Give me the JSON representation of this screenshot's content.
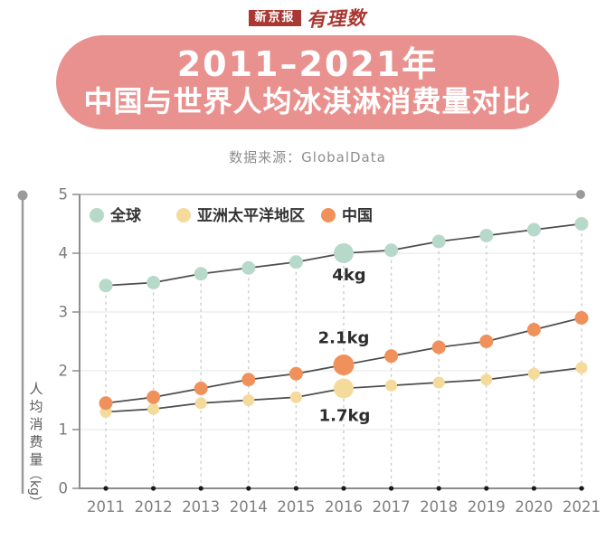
{
  "header": {
    "brand_primary": "新京报",
    "brand_secondary": "有理数",
    "title_line1": "2011–2021年",
    "title_line2": "中国与世界人均冰淇淋消费量对比",
    "source": "数据来源：GlobalData"
  },
  "colors": {
    "banner": "#e9918e",
    "brand_red": "#a93832",
    "line": "#4d4d4d",
    "axis": "#8c8c8c",
    "grid": "#e9e9e9",
    "dash": "#c9c9c9",
    "pin": "#9a9a9a",
    "tick_label": "#7a7a7a",
    "annotation": "#2d2d2d"
  },
  "chart_data": {
    "type": "line",
    "title": "2011-2021年中国与世界人均冰淇淋消费量对比",
    "x": [
      2011,
      2012,
      2013,
      2014,
      2015,
      2016,
      2017,
      2018,
      2019,
      2020,
      2021
    ],
    "series": [
      {
        "name": "全球",
        "color": "#b7d9c9",
        "values": [
          3.45,
          3.5,
          3.65,
          3.75,
          3.85,
          4.0,
          4.05,
          4.2,
          4.3,
          4.4,
          4.5
        ]
      },
      {
        "name": "亚洲太平洋地区",
        "color": "#f4da9b",
        "values": [
          1.3,
          1.35,
          1.45,
          1.5,
          1.55,
          1.7,
          1.75,
          1.8,
          1.85,
          1.95,
          2.05
        ]
      },
      {
        "name": "中国",
        "color": "#f0915c",
        "values": [
          1.45,
          1.55,
          1.7,
          1.85,
          1.95,
          2.1,
          2.25,
          2.4,
          2.5,
          2.7,
          2.9
        ]
      }
    ],
    "xlabel": "",
    "ylabel": "人均消费量（kg）",
    "ylim": [
      0,
      5
    ],
    "yticks": [
      0,
      1,
      2,
      3,
      4,
      5
    ],
    "grid": true,
    "legend_position": "top-inside",
    "highlight_x": 2016,
    "annotations": [
      {
        "series": "全球",
        "x": 2016,
        "label": "4kg",
        "placement": "below",
        "offset": [
          6,
          30
        ]
      },
      {
        "series": "中国",
        "x": 2016,
        "label": "2.1kg",
        "placement": "above",
        "offset": [
          0,
          -24
        ]
      },
      {
        "series": "亚洲太平洋地区",
        "x": 2016,
        "label": "1.7kg",
        "placement": "below",
        "offset": [
          1,
          36
        ]
      }
    ]
  }
}
